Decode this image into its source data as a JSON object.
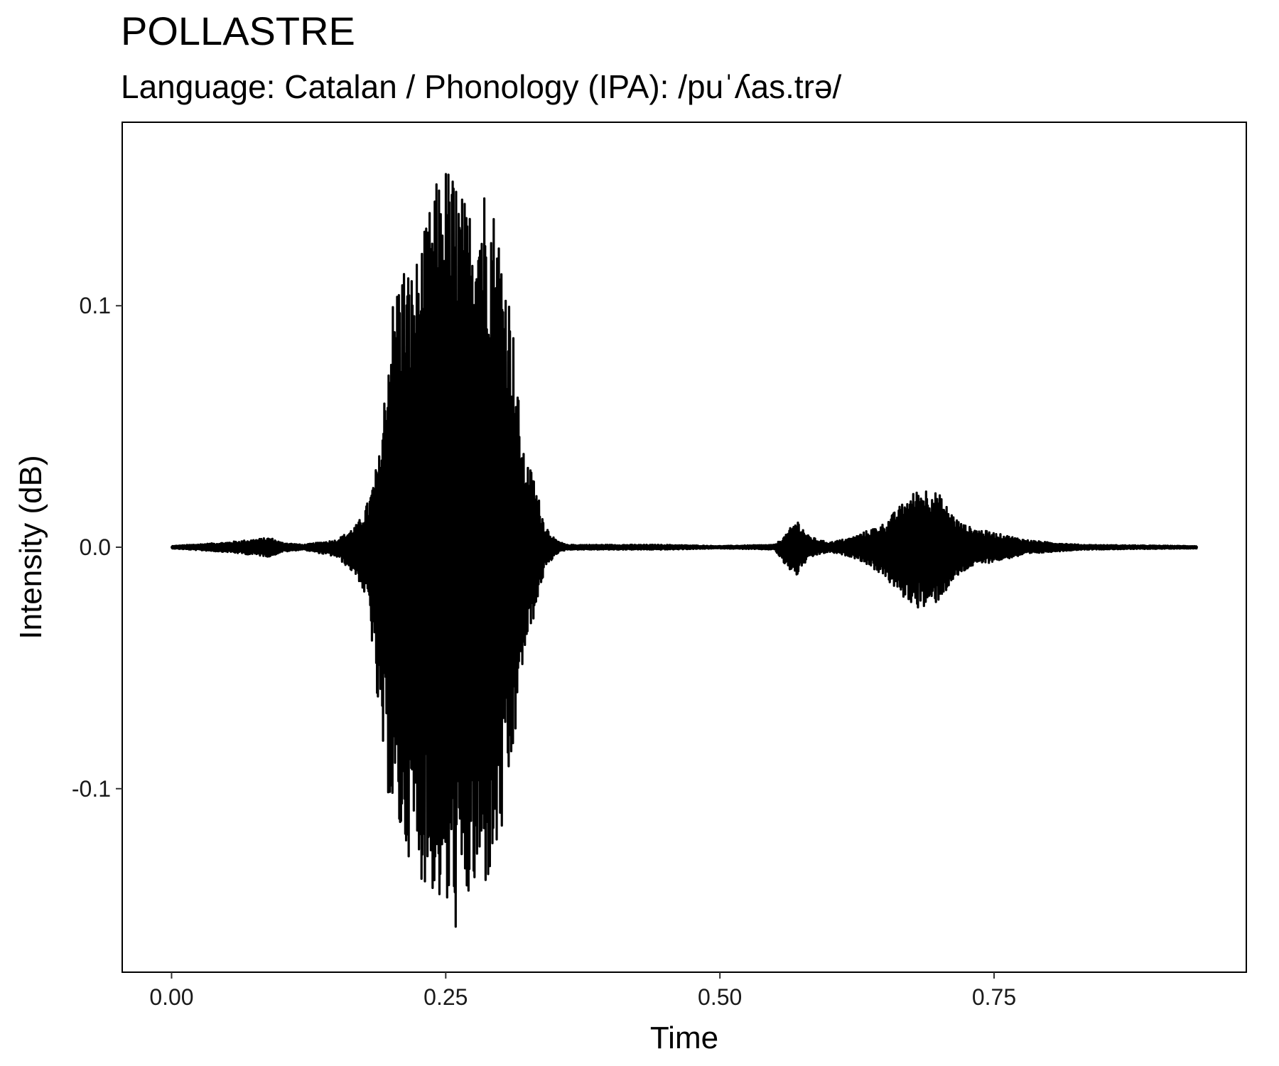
{
  "header": {
    "title": "POLLASTRE",
    "subtitle": "Language: Catalan / Phonology (IPA): /puˈʎas.trə/"
  },
  "chart_data": {
    "type": "line",
    "title": "POLLASTRE",
    "subtitle": "Language: Catalan / Phonology (IPA): /puˈʎas.trə/",
    "xlabel": "Time",
    "ylabel": "Intensity (dB)",
    "xlim": [
      -0.045,
      0.98
    ],
    "ylim": [
      -0.176,
      0.176
    ],
    "x_ticks": [
      {
        "value": 0.0,
        "label": "0.00"
      },
      {
        "value": 0.25,
        "label": "0.25"
      },
      {
        "value": 0.5,
        "label": "0.50"
      },
      {
        "value": 0.75,
        "label": "0.75"
      }
    ],
    "y_ticks": [
      {
        "value": 0.1,
        "label": "0.1"
      },
      {
        "value": 0.0,
        "label": "0.0"
      },
      {
        "value": -0.1,
        "label": "-0.1"
      }
    ],
    "grid": false,
    "legend": "none",
    "line_color": "#000000",
    "series": [
      {
        "envelope_time": [
          0.0,
          0.05,
          0.09,
          0.1,
          0.12,
          0.15,
          0.16,
          0.17,
          0.18,
          0.19,
          0.2,
          0.21,
          0.22,
          0.23,
          0.24,
          0.25,
          0.26,
          0.27,
          0.28,
          0.29,
          0.3,
          0.31,
          0.32,
          0.33,
          0.34,
          0.35,
          0.36,
          0.4,
          0.45,
          0.5,
          0.55,
          0.56,
          0.57,
          0.58,
          0.59,
          0.6,
          0.61,
          0.62,
          0.63,
          0.64,
          0.65,
          0.66,
          0.67,
          0.68,
          0.69,
          0.7,
          0.71,
          0.72,
          0.73,
          0.74,
          0.75,
          0.76,
          0.77,
          0.78,
          0.8,
          0.83,
          0.87,
          0.935
        ],
        "envelope_max": [
          0.0005,
          0.002,
          0.004,
          0.002,
          0.001,
          0.003,
          0.006,
          0.01,
          0.02,
          0.04,
          0.1,
          0.12,
          0.115,
          0.13,
          0.15,
          0.16,
          0.155,
          0.14,
          0.155,
          0.15,
          0.13,
          0.1,
          0.04,
          0.03,
          0.01,
          0.003,
          0.001,
          0.001,
          0.001,
          0.0005,
          0.001,
          0.005,
          0.012,
          0.005,
          0.003,
          0.002,
          0.003,
          0.004,
          0.006,
          0.008,
          0.01,
          0.015,
          0.02,
          0.024,
          0.025,
          0.022,
          0.015,
          0.01,
          0.008,
          0.007,
          0.006,
          0.005,
          0.004,
          0.003,
          0.002,
          0.001,
          0.0008,
          0.0005
        ],
        "envelope_min": [
          -0.0005,
          -0.002,
          -0.004,
          -0.002,
          -0.001,
          -0.004,
          -0.008,
          -0.013,
          -0.025,
          -0.08,
          -0.11,
          -0.125,
          -0.13,
          -0.14,
          -0.145,
          -0.155,
          -0.16,
          -0.15,
          -0.145,
          -0.14,
          -0.125,
          -0.095,
          -0.05,
          -0.03,
          -0.01,
          -0.003,
          -0.001,
          -0.001,
          -0.001,
          -0.0005,
          -0.001,
          -0.008,
          -0.012,
          -0.005,
          -0.003,
          -0.002,
          -0.003,
          -0.004,
          -0.006,
          -0.009,
          -0.012,
          -0.018,
          -0.022,
          -0.025,
          -0.026,
          -0.022,
          -0.016,
          -0.011,
          -0.008,
          -0.007,
          -0.006,
          -0.005,
          -0.004,
          -0.003,
          -0.002,
          -0.001,
          -0.0008,
          -0.0005
        ]
      }
    ]
  }
}
